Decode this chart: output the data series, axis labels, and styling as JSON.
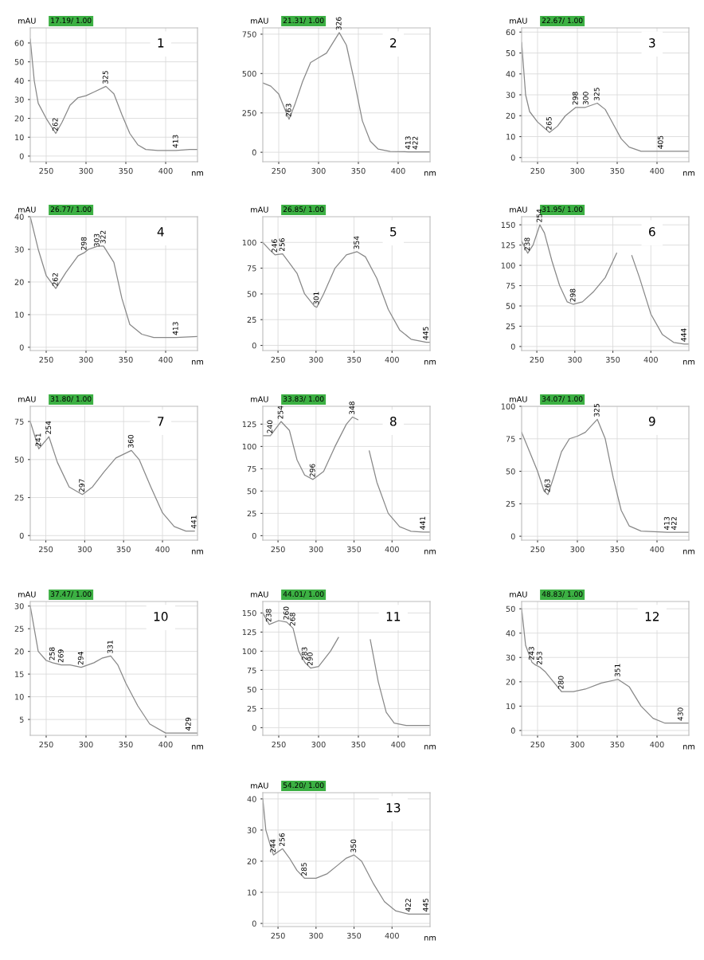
{
  "chart_data": [
    {
      "type": "line",
      "title": "1",
      "xlabel": "nm",
      "ylabel": "mAU",
      "xlim": [
        230,
        440
      ],
      "xticks": [
        250,
        300,
        350,
        400
      ],
      "ylim": [
        -3,
        68
      ],
      "yticks": [
        0,
        10,
        20,
        30,
        40,
        50,
        60
      ],
      "grid": true,
      "color": "#888888",
      "x": [
        230,
        235,
        240,
        250,
        262,
        270,
        280,
        290,
        300,
        310,
        325,
        335,
        345,
        355,
        365,
        375,
        390,
        413,
        430,
        440
      ],
      "values": [
        62,
        40,
        28,
        20,
        12,
        18,
        27,
        31,
        32,
        34,
        37,
        33,
        22,
        12,
        6,
        3.5,
        3,
        3,
        3.5,
        3.5
      ],
      "annotations": [
        "17.19/ 1.00",
        {
          "text": "262",
          "x": 262,
          "y": 12
        },
        {
          "text": "325",
          "x": 325,
          "y": 37
        },
        {
          "text": "413",
          "x": 413,
          "y": 3
        }
      ]
    },
    {
      "type": "line",
      "title": "2",
      "xlabel": "nm",
      "ylabel": "mAU",
      "xlim": [
        230,
        440
      ],
      "xticks": [
        250,
        300,
        350,
        400
      ],
      "ylim": [
        -60,
        790
      ],
      "yticks": [
        0,
        250,
        500,
        750
      ],
      "grid": true,
      "color": "#888888",
      "x": [
        230,
        240,
        250,
        258,
        263,
        270,
        280,
        290,
        300,
        310,
        326,
        335,
        345,
        355,
        365,
        375,
        390,
        413,
        422,
        440
      ],
      "values": [
        440,
        420,
        370,
        270,
        210,
        300,
        450,
        570,
        600,
        630,
        760,
        680,
        450,
        200,
        70,
        20,
        5,
        3,
        2,
        2
      ],
      "annotations": [
        "21.31/ 1.00",
        {
          "text": "263",
          "x": 263,
          "y": 210
        },
        {
          "text": "326",
          "x": 326,
          "y": 760
        },
        {
          "text": "413",
          "x": 413,
          "y": 3
        },
        {
          "text": "422",
          "x": 422,
          "y": 2
        }
      ]
    },
    {
      "type": "line",
      "title": "3",
      "xlabel": "nm",
      "ylabel": "mAU",
      "xlim": [
        230,
        440
      ],
      "xticks": [
        250,
        300,
        350,
        400
      ],
      "ylim": [
        -2,
        62
      ],
      "yticks": [
        0,
        10,
        20,
        30,
        40,
        50,
        60
      ],
      "grid": true,
      "color": "#888888",
      "x": [
        230,
        235,
        240,
        250,
        265,
        275,
        285,
        298,
        300,
        310,
        325,
        335,
        345,
        355,
        365,
        380,
        405,
        440
      ],
      "values": [
        55,
        30,
        22,
        17,
        12,
        15,
        20,
        24,
        24,
        24,
        26,
        23,
        16,
        9,
        5,
        3,
        3,
        3
      ],
      "annotations": [
        "22.67/ 1.00",
        {
          "text": "265",
          "x": 265,
          "y": 12
        },
        {
          "text": "298",
          "x": 298,
          "y": 24
        },
        {
          "text": "300",
          "x": 300,
          "y": 24
        },
        {
          "text": "325",
          "x": 325,
          "y": 26
        },
        {
          "text": "405",
          "x": 405,
          "y": 3
        }
      ]
    },
    {
      "type": "line",
      "title": "4",
      "xlabel": "nm",
      "ylabel": "mAU",
      "xlim": [
        230,
        440
      ],
      "xticks": [
        250,
        300,
        350,
        400
      ],
      "ylim": [
        -1,
        40
      ],
      "yticks": [
        0,
        10,
        20,
        30,
        40
      ],
      "grid": true,
      "color": "#888888",
      "x": [
        230,
        240,
        250,
        262,
        275,
        290,
        298,
        303,
        315,
        322,
        335,
        345,
        355,
        370,
        385,
        413,
        440
      ],
      "values": [
        40,
        30,
        22,
        18,
        23,
        28,
        29,
        30,
        31,
        31,
        26,
        15,
        7,
        4,
        3,
        3,
        3.3
      ],
      "annotations": [
        "26.77/ 1.00",
        {
          "text": "262",
          "x": 262,
          "y": 18
        },
        {
          "text": "298",
          "x": 298,
          "y": 29
        },
        {
          "text": "303",
          "x": 303,
          "y": 30
        },
        {
          "text": "322",
          "x": 322,
          "y": 31
        },
        {
          "text": "413",
          "x": 413,
          "y": 3
        }
      ]
    },
    {
      "type": "line",
      "title": "5",
      "xlabel": "nm",
      "ylabel": "mAU",
      "xlim": [
        230,
        450
      ],
      "xticks": [
        250,
        300,
        350,
        400
      ],
      "ylim": [
        -5,
        125
      ],
      "yticks": [
        0,
        25,
        50,
        75,
        100
      ],
      "grid": true,
      "color": "#888888",
      "x": [
        230,
        240,
        246,
        256,
        265,
        275,
        285,
        298,
        301,
        310,
        325,
        340,
        354,
        365,
        380,
        395,
        410,
        425,
        445,
        450
      ],
      "values": [
        100,
        92,
        88,
        89,
        80,
        70,
        50,
        38,
        37,
        50,
        75,
        88,
        91,
        86,
        65,
        35,
        15,
        6,
        3,
        3
      ],
      "annotations": [
        "26.85/ 1.00",
        {
          "text": "246",
          "x": 246,
          "y": 88
        },
        {
          "text": "256",
          "x": 256,
          "y": 89
        },
        {
          "text": "301",
          "x": 301,
          "y": 37
        },
        {
          "text": "354",
          "x": 354,
          "y": 91
        },
        {
          "text": "445",
          "x": 445,
          "y": 3
        }
      ]
    },
    {
      "type": "line",
      "title": "6",
      "xlabel": "nm",
      "ylabel": "mAU",
      "xlim": [
        230,
        450
      ],
      "xticks": [
        250,
        300,
        350,
        400
      ],
      "ylim": [
        -5,
        160
      ],
      "yticks": [
        0,
        25,
        50,
        75,
        100,
        125,
        150
      ],
      "grid": true,
      "color": "#888888",
      "x": [
        230,
        238,
        245,
        254,
        260,
        270,
        280,
        290,
        298,
        310,
        325,
        340,
        355,
        365,
        375,
        385,
        400,
        415,
        430,
        444,
        450
      ],
      "values": [
        130,
        115,
        125,
        150,
        140,
        105,
        75,
        55,
        52,
        55,
        68,
        85,
        115,
        null,
        112,
        85,
        40,
        15,
        5,
        3,
        3
      ],
      "annotations": [
        "31.95/ 1.00",
        {
          "text": "238",
          "x": 238,
          "y": 115
        },
        {
          "text": "254",
          "x": 254,
          "y": 150
        },
        {
          "text": "298",
          "x": 298,
          "y": 52
        },
        {
          "text": "444",
          "x": 444,
          "y": 3
        }
      ]
    },
    {
      "type": "line",
      "title": "7",
      "xlabel": "nm",
      "ylabel": "mAU",
      "xlim": [
        230,
        445
      ],
      "xticks": [
        250,
        300,
        350,
        400
      ],
      "ylim": [
        -3,
        85
      ],
      "yticks": [
        0,
        25,
        50,
        75
      ],
      "grid": true,
      "color": "#888888",
      "x": [
        230,
        241,
        254,
        265,
        280,
        297,
        310,
        325,
        340,
        360,
        370,
        385,
        400,
        415,
        430,
        441
      ],
      "values": [
        75,
        57,
        65,
        48,
        32,
        27,
        32,
        42,
        51,
        56,
        50,
        32,
        15,
        6,
        3,
        3
      ],
      "annotations": [
        "31.80/ 1.00",
        {
          "text": "241",
          "x": 241,
          "y": 57
        },
        {
          "text": "254",
          "x": 254,
          "y": 65
        },
        {
          "text": "297",
          "x": 297,
          "y": 27
        },
        {
          "text": "360",
          "x": 360,
          "y": 56
        },
        {
          "text": "441",
          "x": 441,
          "y": 3
        }
      ]
    },
    {
      "type": "line",
      "title": "8",
      "xlabel": "nm",
      "ylabel": "mAU",
      "xlim": [
        230,
        450
      ],
      "xticks": [
        250,
        300,
        350,
        400
      ],
      "ylim": [
        -5,
        145
      ],
      "yticks": [
        0,
        25,
        50,
        75,
        100,
        125
      ],
      "grid": true,
      "color": "#888888",
      "x": [
        230,
        240,
        254,
        265,
        275,
        285,
        296,
        310,
        325,
        340,
        348,
        355,
        360,
        370,
        380,
        395,
        410,
        425,
        441,
        450
      ],
      "values": [
        112,
        112,
        128,
        118,
        85,
        68,
        63,
        72,
        100,
        125,
        133,
        130,
        null,
        95,
        60,
        25,
        10,
        5,
        4,
        4
      ],
      "annotations": [
        "33.83/ 1.00",
        {
          "text": "240",
          "x": 240,
          "y": 112
        },
        {
          "text": "254",
          "x": 254,
          "y": 128
        },
        {
          "text": "296",
          "x": 296,
          "y": 63
        },
        {
          "text": "348",
          "x": 348,
          "y": 133
        },
        {
          "text": "441",
          "x": 441,
          "y": 4
        }
      ]
    },
    {
      "type": "line",
      "title": "9",
      "xlabel": "nm",
      "ylabel": "mAU",
      "xlim": [
        230,
        440
      ],
      "xticks": [
        250,
        300,
        350,
        400
      ],
      "ylim": [
        -3,
        100
      ],
      "yticks": [
        0,
        25,
        50,
        75,
        100
      ],
      "grid": true,
      "color": "#888888",
      "x": [
        230,
        240,
        250,
        258,
        263,
        270,
        280,
        290,
        300,
        310,
        325,
        335,
        345,
        355,
        365,
        380,
        413,
        422,
        440
      ],
      "values": [
        80,
        65,
        50,
        35,
        32,
        45,
        65,
        75,
        77,
        80,
        90,
        75,
        45,
        20,
        8,
        4,
        3,
        3,
        3
      ],
      "annotations": [
        "34.07/ 1.00",
        {
          "text": "263",
          "x": 263,
          "y": 32
        },
        {
          "text": "325",
          "x": 325,
          "y": 90
        },
        {
          "text": "413",
          "x": 413,
          "y": 3
        },
        {
          "text": "422",
          "x": 422,
          "y": 3
        }
      ]
    },
    {
      "type": "line",
      "title": "10",
      "xlabel": "nm",
      "ylabel": "mAU",
      "xlim": [
        230,
        440
      ],
      "xticks": [
        250,
        300,
        350,
        400
      ],
      "ylim": [
        1.5,
        31
      ],
      "yticks": [
        5,
        10,
        15,
        20,
        25,
        30
      ],
      "grid": true,
      "color": "#888888",
      "x": [
        230,
        235,
        240,
        250,
        258,
        269,
        280,
        294,
        310,
        320,
        331,
        340,
        350,
        365,
        380,
        400,
        429,
        440
      ],
      "values": [
        30,
        25,
        20,
        18,
        17.5,
        17,
        17,
        16.5,
        17.5,
        18.5,
        19,
        17,
        13,
        8,
        4,
        2,
        2,
        2
      ],
      "annotations": [
        "37.47/ 1.00",
        {
          "text": "258",
          "x": 258,
          "y": 17.5
        },
        {
          "text": "269",
          "x": 269,
          "y": 17
        },
        {
          "text": "294",
          "x": 294,
          "y": 16.5
        },
        {
          "text": "331",
          "x": 331,
          "y": 19
        },
        {
          "text": "429",
          "x": 429,
          "y": 2
        }
      ]
    },
    {
      "type": "line",
      "title": "11",
      "xlabel": "nm",
      "ylabel": "mAU",
      "xlim": [
        230,
        440
      ],
      "xticks": [
        250,
        300,
        350,
        400
      ],
      "ylim": [
        -10,
        165
      ],
      "yticks": [
        0,
        25,
        50,
        75,
        100,
        125,
        150
      ],
      "grid": true,
      "color": "#888888",
      "x": [
        230,
        238,
        250,
        260,
        268,
        275,
        283,
        290,
        300,
        315,
        325,
        335,
        355,
        365,
        375,
        385,
        395,
        410,
        440
      ],
      "values": [
        150,
        135,
        140,
        138,
        130,
        100,
        85,
        78,
        80,
        100,
        118,
        null,
        null,
        115,
        60,
        20,
        6,
        3,
        3
      ],
      "annotations": [
        "44.01/ 1.00",
        {
          "text": "238",
          "x": 238,
          "y": 135
        },
        {
          "text": "260",
          "x": 260,
          "y": 138
        },
        {
          "text": "268",
          "x": 268,
          "y": 130
        },
        {
          "text": "283",
          "x": 283,
          "y": 85
        },
        {
          "text": "290",
          "x": 290,
          "y": 78
        }
      ]
    },
    {
      "type": "line",
      "title": "12",
      "xlabel": "nm",
      "ylabel": "mAU",
      "xlim": [
        230,
        440
      ],
      "xticks": [
        250,
        300,
        350,
        400
      ],
      "ylim": [
        -2,
        53
      ],
      "yticks": [
        0,
        10,
        20,
        30,
        40,
        50
      ],
      "grid": true,
      "color": "#888888",
      "x": [
        230,
        235,
        243,
        247,
        253,
        260,
        270,
        280,
        295,
        310,
        330,
        351,
        365,
        380,
        395,
        410,
        430,
        440
      ],
      "values": [
        50,
        35,
        28,
        27,
        26,
        24,
        20,
        16,
        16,
        17,
        19.5,
        21,
        18,
        10,
        5,
        3,
        3,
        3
      ],
      "annotations": [
        "48.83/ 1.00",
        {
          "text": "243",
          "x": 243,
          "y": 28
        },
        {
          "text": "253",
          "x": 253,
          "y": 26
        },
        {
          "text": "280",
          "x": 280,
          "y": 16
        },
        {
          "text": "351",
          "x": 351,
          "y": 21
        },
        {
          "text": "430",
          "x": 430,
          "y": 3
        }
      ]
    },
    {
      "type": "line",
      "title": "13",
      "xlabel": "nm",
      "ylabel": "mAU",
      "xlim": [
        230,
        450
      ],
      "xticks": [
        250,
        300,
        350,
        400
      ],
      "ylim": [
        -1,
        42
      ],
      "yticks": [
        0,
        10,
        20,
        30,
        40
      ],
      "grid": true,
      "color": "#888888",
      "x": [
        230,
        234,
        240,
        244,
        256,
        265,
        275,
        285,
        300,
        315,
        330,
        340,
        350,
        360,
        375,
        390,
        405,
        422,
        445,
        450
      ],
      "values": [
        40,
        30,
        25,
        22,
        24,
        21,
        17,
        14.5,
        14.5,
        16,
        19,
        21,
        22,
        20,
        13,
        7,
        4,
        3,
        3,
        3
      ],
      "annotations": [
        "54.20/ 1.00",
        {
          "text": "244",
          "x": 244,
          "y": 22
        },
        {
          "text": "256",
          "x": 256,
          "y": 24
        },
        {
          "text": "285",
          "x": 285,
          "y": 14.5
        },
        {
          "text": "350",
          "x": 350,
          "y": 22
        },
        {
          "text": "422",
          "x": 422,
          "y": 3
        },
        {
          "text": "445",
          "x": 445,
          "y": 3
        }
      ]
    }
  ]
}
